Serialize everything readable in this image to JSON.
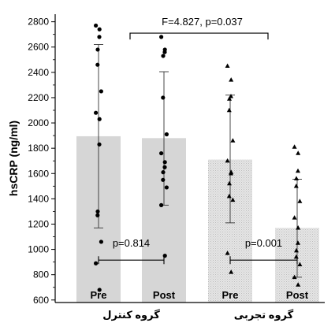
{
  "chart_data": {
    "type": "bar",
    "title": "",
    "xlabel": "",
    "ylabel": "hsCRP (ng/ml)",
    "ylim": [
      580,
      2860
    ],
    "yticks": [
      600,
      800,
      1000,
      1200,
      1400,
      1600,
      1800,
      2000,
      2200,
      2400,
      2600,
      2800
    ],
    "groups": [
      {
        "name": "گروه کنترل",
        "series": [
          "control-pre",
          "control-post"
        ]
      },
      {
        "name": "گروه تجربی",
        "series": [
          "exp-pre",
          "exp-post"
        ]
      }
    ],
    "series": [
      {
        "id": "control-pre",
        "label": "Pre",
        "group": "گروه کنترل",
        "mean": 1895,
        "error_low": 1170,
        "error_high": 2620,
        "marker": "circle",
        "fill": "solid",
        "points": [
          2770,
          2740,
          2680,
          2580,
          2460,
          2250,
          2080,
          2030,
          1830,
          1300,
          1270,
          1060,
          890,
          680
        ]
      },
      {
        "id": "control-post",
        "label": "Post",
        "group": "گروه کنترل",
        "mean": 1880,
        "error_low": 1350,
        "error_high": 2405,
        "marker": "circle",
        "fill": "solid",
        "points": [
          2680,
          2580,
          2560,
          2530,
          2200,
          1910,
          1760,
          1690,
          1650,
          1610,
          1550,
          1490,
          1350,
          950
        ]
      },
      {
        "id": "exp-pre",
        "label": "Pre",
        "group": "گروه تجربی",
        "mean": 1710,
        "error_low": 1210,
        "error_high": 2220,
        "marker": "triangle",
        "fill": "hatched",
        "points": [
          2450,
          2340,
          2210,
          2190,
          2100,
          1860,
          1700,
          1610,
          1600,
          1520,
          1420,
          1390,
          970,
          820
        ]
      },
      {
        "id": "exp-post",
        "label": "Post",
        "group": "گروه تجربی",
        "mean": 1170,
        "error_low": 780,
        "error_high": 1555,
        "marker": "triangle",
        "fill": "hatched",
        "points": [
          1810,
          1760,
          1620,
          1560,
          1500,
          1380,
          1250,
          1170,
          1050,
          990,
          940,
          880,
          780,
          720
        ]
      }
    ],
    "annotations": {
      "between_groups": {
        "text": "F=4.827, p=0.037",
        "from": "control-pre",
        "to": "exp-pre",
        "y": 2710
      },
      "within_control": {
        "text": "p=0.814",
        "from": "control-pre",
        "to": "control-post",
        "y": 915
      },
      "within_exp": {
        "text": "p=0.001",
        "from": "exp-pre",
        "to": "exp-post",
        "y": 915
      }
    },
    "colors": {
      "bar_solid": "#d6d6d6",
      "bar_hatched": "#dedede",
      "points": "#000000",
      "lines": "#000000"
    }
  }
}
